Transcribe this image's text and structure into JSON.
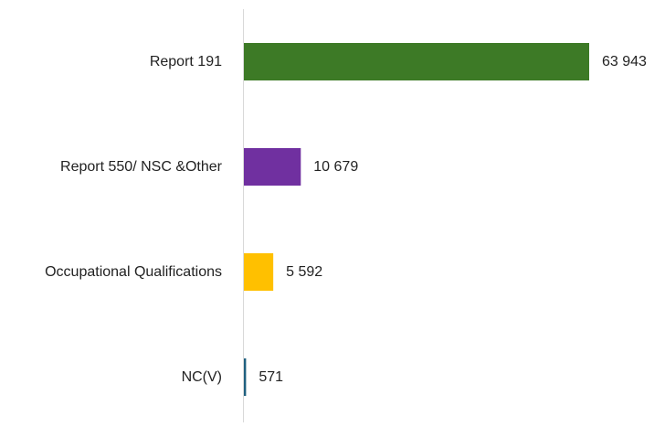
{
  "chart_data": {
    "type": "bar",
    "orientation": "horizontal",
    "categories": [
      "Report 191",
      "Report 550/ NSC &Other",
      "Occupational Qualifications",
      "NC(V)"
    ],
    "values": [
      63943,
      10679,
      5592,
      571
    ],
    "value_labels": [
      "63 943",
      "10 679",
      "5 592",
      "571"
    ],
    "colors": [
      "#3d7a26",
      "#7030a0",
      "#ffc000",
      "#1f6080"
    ]
  }
}
